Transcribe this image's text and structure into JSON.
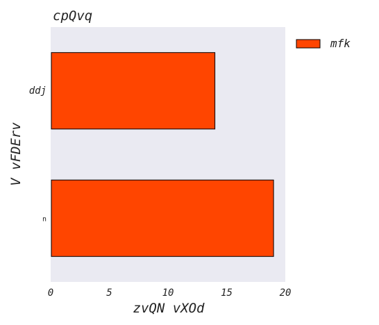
{
  "chart_data": {
    "type": "bar",
    "orientation": "horizontal",
    "title": "cpQvq",
    "xlabel": "zvQN vXOd",
    "ylabel": "V vFDErv",
    "categories": [
      "ddj",
      "n"
    ],
    "series": [
      {
        "name": "mfk",
        "values": [
          14,
          19
        ]
      }
    ],
    "xlim": [
      0,
      20
    ],
    "xticks": [
      "0",
      "5",
      "10",
      "15",
      "20"
    ],
    "grid": false,
    "legend_position": "outside-top-right",
    "colors": {
      "bar": "#ff4500",
      "bar_edge": "#000000",
      "plot_background": "#eaeaf2"
    }
  }
}
